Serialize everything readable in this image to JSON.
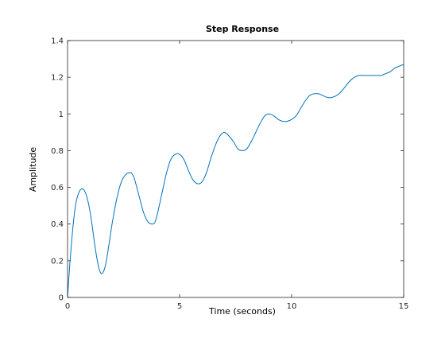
{
  "chart_data": {
    "type": "line",
    "title": "Step Response",
    "xlabel": "Time (seconds)",
    "ylabel": "Amplitude",
    "xlim": [
      0,
      15
    ],
    "ylim": [
      0,
      1.4
    ],
    "xticks": [
      0,
      5,
      10,
      15
    ],
    "yticks": [
      0,
      0.2,
      0.4,
      0.6,
      0.8,
      1,
      1.2,
      1.4
    ],
    "xtick_labels": [
      "0",
      "5",
      "10",
      "15"
    ],
    "ytick_labels": [
      "0",
      "0.2",
      "0.4",
      "0.6",
      "0.8",
      "1",
      "1.2",
      "1.4"
    ],
    "grid": false,
    "series": [
      {
        "color": "#0072bd",
        "x": [
          0,
          0.1,
          0.2,
          0.3,
          0.4,
          0.5,
          0.6,
          0.7,
          0.8,
          0.9,
          1.0,
          1.1,
          1.2,
          1.3,
          1.4,
          1.5,
          1.6,
          1.7,
          1.8,
          1.9,
          2.0,
          2.2,
          2.4,
          2.6,
          2.8,
          2.9,
          3.0,
          3.2,
          3.4,
          3.6,
          3.8,
          3.9,
          4.0,
          4.2,
          4.4,
          4.6,
          4.8,
          5.0,
          5.2,
          5.4,
          5.6,
          5.8,
          6.0,
          6.2,
          6.4,
          6.6,
          6.8,
          7.0,
          7.2,
          7.4,
          7.6,
          7.8,
          8.0,
          8.2,
          8.4,
          8.6,
          8.8,
          9.0,
          9.2,
          9.4,
          9.6,
          9.8,
          10.0,
          10.2,
          10.4,
          10.6,
          10.8,
          11.0,
          11.2,
          11.4,
          11.6,
          11.8,
          12.0,
          12.2,
          12.4,
          12.6,
          12.8,
          13.0,
          13.2,
          13.4,
          13.6,
          13.8,
          14.0,
          14.2,
          14.4,
          14.6,
          14.8,
          15.0
        ],
        "y": [
          0,
          0.18,
          0.33,
          0.45,
          0.53,
          0.57,
          0.59,
          0.59,
          0.57,
          0.53,
          0.47,
          0.39,
          0.3,
          0.22,
          0.16,
          0.13,
          0.14,
          0.18,
          0.25,
          0.33,
          0.41,
          0.54,
          0.63,
          0.67,
          0.68,
          0.67,
          0.64,
          0.55,
          0.46,
          0.41,
          0.4,
          0.41,
          0.45,
          0.56,
          0.67,
          0.75,
          0.78,
          0.78,
          0.75,
          0.69,
          0.64,
          0.62,
          0.63,
          0.68,
          0.76,
          0.83,
          0.88,
          0.9,
          0.88,
          0.85,
          0.81,
          0.8,
          0.81,
          0.85,
          0.9,
          0.95,
          0.99,
          1.0,
          0.99,
          0.97,
          0.96,
          0.96,
          0.97,
          0.99,
          1.03,
          1.07,
          1.1,
          1.11,
          1.11,
          1.1,
          1.09,
          1.09,
          1.1,
          1.12,
          1.15,
          1.18,
          1.2,
          1.21,
          1.21,
          1.21,
          1.21,
          1.21,
          1.21,
          1.22,
          1.23,
          1.25,
          1.26,
          1.27
        ]
      }
    ]
  }
}
